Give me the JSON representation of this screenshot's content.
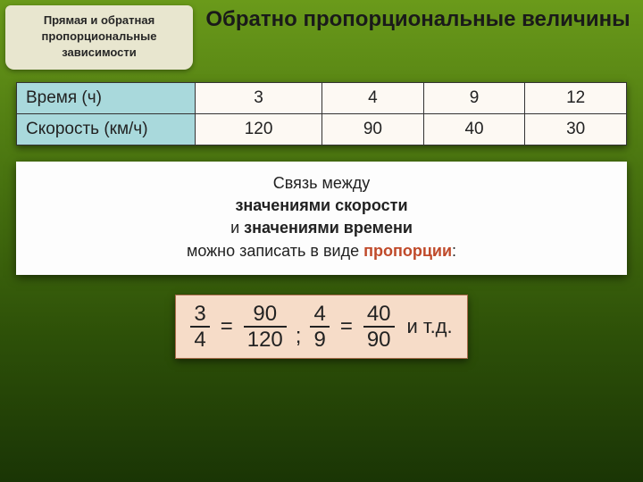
{
  "header": {
    "left_tab": "Прямая и обратная пропорциональные зависимости",
    "title": "Обратно пропорциональные величины"
  },
  "table": {
    "row1_label": "Время (ч)",
    "row1": [
      "3",
      "4",
      "9",
      "12"
    ],
    "row2_label": "Скорость (км/ч)",
    "row2": [
      "120",
      "90",
      "40",
      "30"
    ],
    "header_bg": "#a9d9dc",
    "cell_bg": "#fdf9f3",
    "border_color": "#333333"
  },
  "description": {
    "line1": "Связь между",
    "line2": "значениями скорости",
    "line3a": "и ",
    "line3b": "значениями времени",
    "line4a": "можно записать в виде ",
    "line4b": "пропорции",
    "line4c": ":"
  },
  "formula": {
    "f1": {
      "num": "3",
      "den": "4"
    },
    "eq": "=",
    "f2": {
      "num": "90",
      "den": "120"
    },
    "sep": ";",
    "f3": {
      "num": "4",
      "den": "9"
    },
    "f4": {
      "num": "40",
      "den": "90"
    },
    "etc": "и т.д.",
    "bg": "#f6dcc8",
    "border": "#a86b4a"
  },
  "colors": {
    "bg_top": "#6a9a1a",
    "bg_bottom": "#1a3505",
    "tab_bg": "#e8e6cf",
    "highlight": "#c04a2a"
  }
}
